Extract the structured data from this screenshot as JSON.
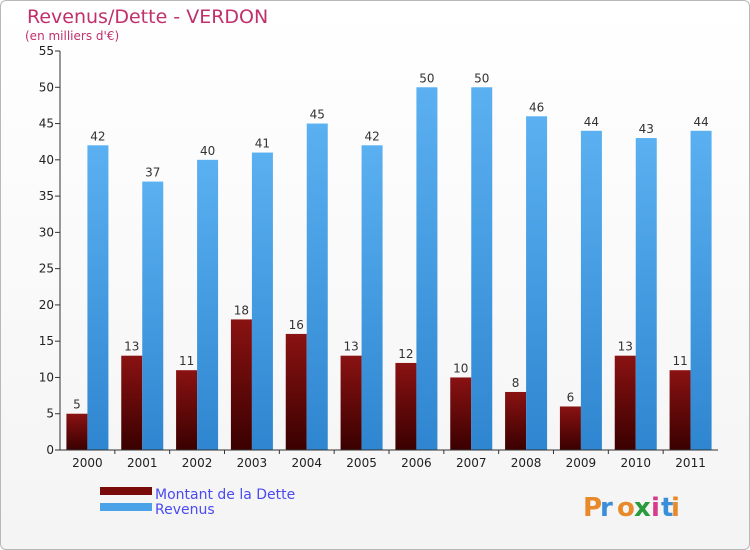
{
  "chart_data": {
    "type": "bar",
    "title": "Revenus/Dette - VERDON",
    "subtitle": "(en milliers d'€)",
    "categories": [
      "2000",
      "2001",
      "2002",
      "2003",
      "2004",
      "2005",
      "2006",
      "2007",
      "2008",
      "2009",
      "2010",
      "2011"
    ],
    "series": [
      {
        "name": "Montant de la Dette",
        "color": "#7a0b0b",
        "values": [
          5,
          13,
          11,
          18,
          16,
          13,
          12,
          10,
          8,
          6,
          13,
          11
        ]
      },
      {
        "name": "Revenus",
        "color": "#4aa3e8",
        "values": [
          42,
          37,
          40,
          41,
          45,
          42,
          50,
          50,
          46,
          44,
          43,
          44
        ]
      }
    ],
    "ylim": [
      0,
      55
    ],
    "yticks": [
      0,
      5,
      10,
      15,
      20,
      25,
      30,
      35,
      40,
      45,
      50,
      55
    ],
    "grid": false,
    "legend_position": "bottom-left"
  },
  "logo": {
    "text": "Proxiti"
  }
}
